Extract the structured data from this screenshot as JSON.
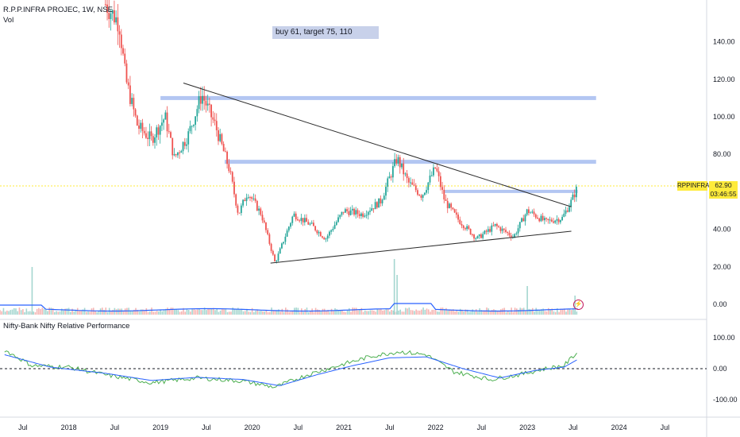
{
  "header": {
    "title": "R.P.P.INFRA PROJEC, 1W, NSE",
    "volume_label": "Vol",
    "pane2_title": "Nifty-Bank Nifty Relative Performance"
  },
  "annotation": "buy 61, target 75, 110",
  "price_badge": {
    "symbol": "RPPINFRA",
    "price": "62.90",
    "countdown": "03:46:55"
  },
  "alert_glyph": "⚡",
  "colors": {
    "up": "#26a69a",
    "down": "#ef5350",
    "hline": "#b3c6f2",
    "trend": "#2b2b2b",
    "ma": "#2962ff",
    "rp": "#4caf50",
    "badge": "#ffeb3b"
  },
  "chart_data": [
    {
      "type": "candlestick",
      "title": "R.P.P.INFRA PROJEC, 1W, NSE",
      "y_ticks": [
        "140.00",
        "120.00",
        "100.00",
        "80.00",
        "60.00",
        "40.00",
        "20.00",
        "0.00"
      ],
      "x_ticks": [
        "Jul",
        "2018",
        "Jul",
        "2019",
        "Jul",
        "2020",
        "Jul",
        "2021",
        "Jul",
        "2022",
        "Jul",
        "2023",
        "Jul",
        "2024",
        "Jul"
      ],
      "ylim": [
        0,
        160
      ],
      "current_price": 62.9,
      "price_path": [
        {
          "x": 2018.4,
          "y": 160
        },
        {
          "x": 2018.55,
          "y": 150
        },
        {
          "x": 2018.62,
          "y": 120
        },
        {
          "x": 2018.75,
          "y": 95
        },
        {
          "x": 2018.9,
          "y": 88
        },
        {
          "x": 2019.05,
          "y": 100
        },
        {
          "x": 2019.15,
          "y": 78
        },
        {
          "x": 2019.3,
          "y": 90
        },
        {
          "x": 2019.45,
          "y": 112
        },
        {
          "x": 2019.6,
          "y": 95
        },
        {
          "x": 2019.75,
          "y": 72
        },
        {
          "x": 2019.85,
          "y": 48
        },
        {
          "x": 2019.95,
          "y": 60
        },
        {
          "x": 2020.1,
          "y": 48
        },
        {
          "x": 2020.25,
          "y": 22
        },
        {
          "x": 2020.45,
          "y": 48
        },
        {
          "x": 2020.65,
          "y": 42
        },
        {
          "x": 2020.8,
          "y": 35
        },
        {
          "x": 2021.0,
          "y": 50
        },
        {
          "x": 2021.2,
          "y": 48
        },
        {
          "x": 2021.4,
          "y": 55
        },
        {
          "x": 2021.58,
          "y": 78
        },
        {
          "x": 2021.7,
          "y": 65
        },
        {
          "x": 2021.85,
          "y": 58
        },
        {
          "x": 2022.0,
          "y": 73
        },
        {
          "x": 2022.1,
          "y": 55
        },
        {
          "x": 2022.25,
          "y": 45
        },
        {
          "x": 2022.45,
          "y": 35
        },
        {
          "x": 2022.65,
          "y": 42
        },
        {
          "x": 2022.85,
          "y": 36
        },
        {
          "x": 2023.0,
          "y": 50
        },
        {
          "x": 2023.2,
          "y": 44
        },
        {
          "x": 2023.38,
          "y": 46
        },
        {
          "x": 2023.48,
          "y": 55
        },
        {
          "x": 2023.55,
          "y": 62.9
        }
      ],
      "horizontal_levels": [
        {
          "y": 110,
          "x_start": 2019.0,
          "x_end": 2023.75
        },
        {
          "y": 76,
          "x_start": 2019.7,
          "x_end": 2023.75
        },
        {
          "y": 60,
          "x_start": 2022.1,
          "x_end": 2023.55
        }
      ],
      "trendlines": [
        {
          "points": [
            {
              "x": 2019.25,
              "y": 118
            },
            {
              "x": 2023.48,
              "y": 52
            }
          ]
        },
        {
          "points": [
            {
              "x": 2020.2,
              "y": 22
            },
            {
              "x": 2023.48,
              "y": 39
            }
          ]
        }
      ],
      "volume_spikes": [
        {
          "x": 2017.6,
          "v": 30
        },
        {
          "x": 2021.55,
          "v": 35
        },
        {
          "x": 2021.58,
          "v": 25
        },
        {
          "x": 2023.0,
          "v": 18
        },
        {
          "x": 2023.52,
          "v": 12
        }
      ]
    },
    {
      "type": "line",
      "title": "Nifty-Bank Nifty Relative Performance",
      "y_ticks": [
        "100.00",
        "0.00",
        "-100.00"
      ],
      "ylim": [
        -150,
        150
      ],
      "series": [
        {
          "values_path": [
            {
              "x": 2017.3,
              "y": 60
            },
            {
              "x": 2017.6,
              "y": 10
            },
            {
              "x": 2018.0,
              "y": 5
            },
            {
              "x": 2018.4,
              "y": -20
            },
            {
              "x": 2018.9,
              "y": -45
            },
            {
              "x": 2019.4,
              "y": -30
            },
            {
              "x": 2019.9,
              "y": -40
            },
            {
              "x": 2020.25,
              "y": -60
            },
            {
              "x": 2020.6,
              "y": -20
            },
            {
              "x": 2021.0,
              "y": 15
            },
            {
              "x": 2021.3,
              "y": 40
            },
            {
              "x": 2021.6,
              "y": 55
            },
            {
              "x": 2021.9,
              "y": 45
            },
            {
              "x": 2022.2,
              "y": -10
            },
            {
              "x": 2022.6,
              "y": -35
            },
            {
              "x": 2022.9,
              "y": -20
            },
            {
              "x": 2023.2,
              "y": 0
            },
            {
              "x": 2023.4,
              "y": 10
            },
            {
              "x": 2023.55,
              "y": 55
            }
          ]
        },
        {
          "values_path": [
            {
              "x": 2017.3,
              "y": 45
            },
            {
              "x": 2017.8,
              "y": 5
            },
            {
              "x": 2018.4,
              "y": -15
            },
            {
              "x": 2018.9,
              "y": -38
            },
            {
              "x": 2019.4,
              "y": -28
            },
            {
              "x": 2019.9,
              "y": -35
            },
            {
              "x": 2020.3,
              "y": -55
            },
            {
              "x": 2020.7,
              "y": -20
            },
            {
              "x": 2021.1,
              "y": 10
            },
            {
              "x": 2021.5,
              "y": 35
            },
            {
              "x": 2021.9,
              "y": 38
            },
            {
              "x": 2022.3,
              "y": 0
            },
            {
              "x": 2022.7,
              "y": -30
            },
            {
              "x": 2023.1,
              "y": -5
            },
            {
              "x": 2023.4,
              "y": 5
            },
            {
              "x": 2023.55,
              "y": 30
            }
          ]
        }
      ]
    }
  ]
}
